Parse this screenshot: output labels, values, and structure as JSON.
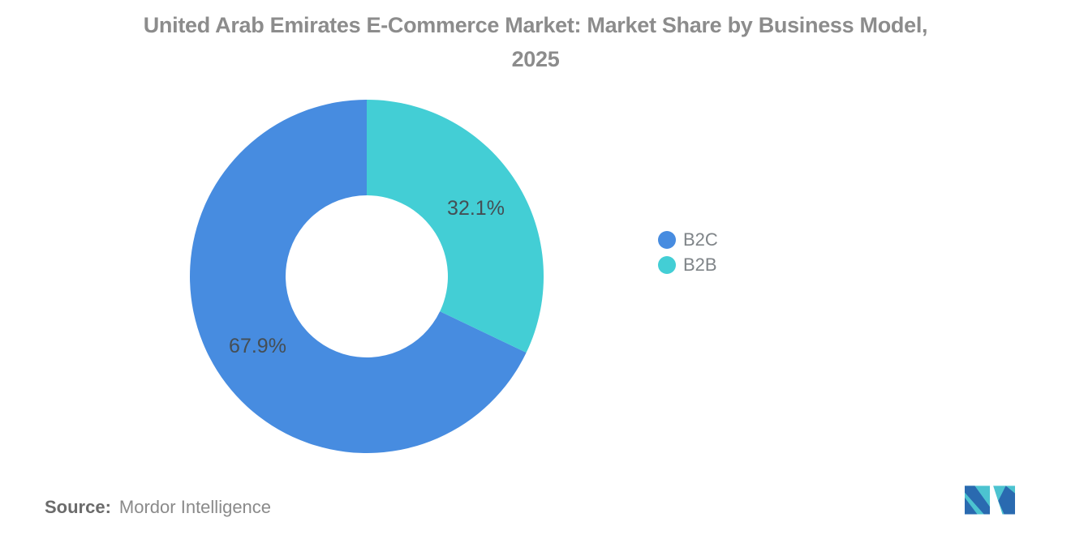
{
  "title": {
    "line1": "United Arab Emirates E-Commerce Market: Market Share by Business Model,",
    "line2": "2025"
  },
  "legend": {
    "items": [
      {
        "label": "B2C",
        "color": "#478ce0"
      },
      {
        "label": "B2B",
        "color": "#43ced5"
      }
    ]
  },
  "source": {
    "label": "Source:",
    "text": "Mordor Intelligence"
  },
  "logo": {
    "name": "mordor-intelligence-logo",
    "teal": "#4cc3d0",
    "blue": "#2a6ab0"
  },
  "colors": {
    "background": "#ffffff",
    "title_text": "#8c8c8c",
    "legend_text": "#7f8488",
    "slice_label_text": "#454e54",
    "source_label": "#6b6b6b",
    "source_text": "#8a8a8a"
  },
  "chart_data": {
    "type": "pie",
    "subtype": "donut",
    "title": "United Arab Emirates E-Commerce Market: Market Share by Business Model, 2025",
    "units": "percent",
    "series": [
      {
        "name": "B2C",
        "value": 67.9,
        "label": "67.9%",
        "color": "#478ce0"
      },
      {
        "name": "B2B",
        "value": 32.1,
        "label": "32.1%",
        "color": "#43ced5"
      }
    ],
    "start_at": "top",
    "direction": "counterclockwise",
    "inner_radius_ratio": 0.46,
    "legend_position": "right",
    "label_placement": "inside",
    "label_color": "#454e54",
    "grid": false
  }
}
